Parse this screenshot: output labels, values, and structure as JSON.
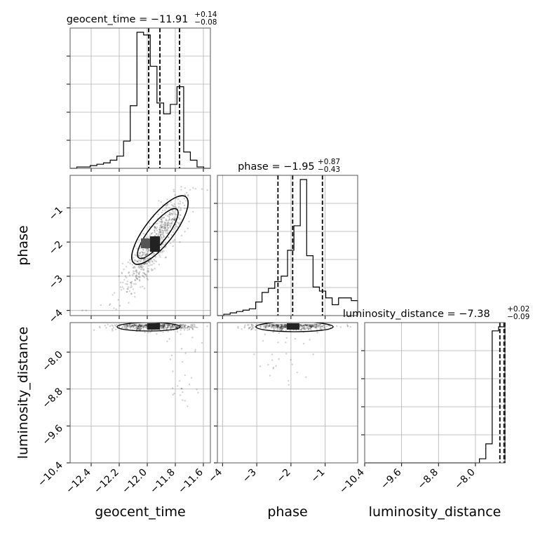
{
  "chart_data": {
    "type": "corner",
    "parameters": [
      "geocent_time",
      "phase",
      "luminosity_distance"
    ],
    "titles": [
      {
        "param": "geocent_time",
        "prefix": "geocent_time = ",
        "median": "−11.91",
        "upper": "+0.14",
        "lower": "−0.08"
      },
      {
        "param": "phase",
        "prefix": "phase = ",
        "median": "−1.95",
        "upper": "+0.87",
        "lower": "−0.43"
      },
      {
        "param": "luminosity_distance",
        "prefix": "luminosity_distance = ",
        "median": "−7.38",
        "upper": "+0.02",
        "lower": "−0.09"
      }
    ],
    "axis_labels": {
      "geocent_time": "geocent_time",
      "phase": "phase",
      "luminosity_distance": "luminosity_distance"
    },
    "ranges": {
      "geocent_time": [
        -12.55,
        -11.55
      ],
      "phase": [
        -4.15,
        -0.05
      ],
      "luminosity_distance": [
        -10.4,
        -7.36
      ]
    },
    "ticks": {
      "geocent_time": {
        "values": [
          -12.4,
          -12.2,
          -12.0,
          -11.8,
          -11.6
        ],
        "labels": [
          "−12.4",
          "−12.2",
          "−12.0",
          "−11.8",
          "−11.6"
        ]
      },
      "phase": {
        "values": [
          -4,
          -3,
          -2,
          -1
        ],
        "labels": [
          "−4",
          "−3",
          "−2",
          "−1"
        ]
      },
      "luminosity_distance": {
        "values": [
          -10.4,
          -9.6,
          -8.8,
          -8.0
        ],
        "labels": [
          "−10.4",
          "−9.6",
          "−8.8",
          "−8.0"
        ]
      }
    },
    "quantiles": {
      "geocent_time": [
        -11.99,
        -11.91,
        -11.77
      ],
      "phase": [
        -2.38,
        -1.95,
        -1.08
      ],
      "luminosity_distance": [
        -7.47,
        -7.38,
        -7.36
      ]
    },
    "histograms": {
      "geocent_time": {
        "counts": [
          0,
          1,
          1,
          2,
          3,
          4,
          6,
          9,
          20,
          46,
          100,
          98,
          75,
          48,
          40,
          47,
          60,
          12,
          6,
          1,
          0
        ],
        "range": [
          -12.55,
          -11.55
        ]
      },
      "phase": {
        "counts": [
          0,
          1,
          2,
          3,
          4,
          5,
          10,
          17,
          20,
          25,
          29,
          48,
          66,
          100,
          44,
          21,
          18,
          13,
          8,
          13,
          13,
          11
        ],
        "range": [
          -4.15,
          -0.05
        ]
      },
      "luminosity_distance": {
        "counts": [
          0,
          0,
          0,
          0,
          0,
          0,
          0,
          0,
          0,
          0,
          0,
          0,
          0,
          0,
          0,
          0,
          0,
          0,
          3,
          14,
          97,
          100
        ],
        "range": [
          -10.4,
          -7.36
        ]
      }
    },
    "grid": true
  }
}
